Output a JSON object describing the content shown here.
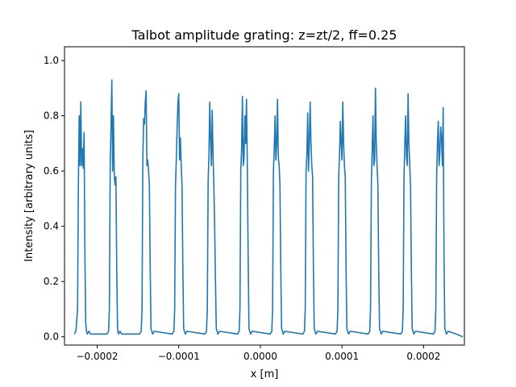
{
  "chart_data": {
    "type": "line",
    "title": "Talbot amplitude grating: z=zt/2, ff=0.25",
    "xlabel": "x [m]",
    "ylabel": "Intensity [arbitrary units]",
    "xlim": [
      -0.00024,
      0.00025
    ],
    "ylim": [
      -0.03,
      1.05
    ],
    "x_ticks": [
      -0.0002,
      -0.0001,
      0.0,
      0.0001,
      0.0002
    ],
    "x_tick_labels": [
      "−0.0002",
      "−0.0001",
      "0.0000",
      "0.0001",
      "0.0002"
    ],
    "y_ticks": [
      0.0,
      0.2,
      0.4,
      0.6,
      0.8,
      1.0
    ],
    "y_tick_labels": [
      "0.0",
      "0.2",
      "0.4",
      "0.6",
      "0.8",
      "1.0"
    ],
    "grid": false,
    "line_color": "#1f77b4",
    "series": [
      {
        "x": [
          -0.000228,
          -0.000226,
          -0.000224,
          -0.000223,
          -0.000222,
          -0.000221,
          -0.00022,
          -0.000219,
          -0.000218,
          -0.000217,
          -0.000216,
          -0.000215,
          -0.000214,
          -0.000213,
          -0.000212,
          -0.00021,
          -0.000208,
          -0.000188,
          -0.000186,
          -0.000185,
          -0.000184,
          -0.000183,
          -0.000182,
          -0.000181,
          -0.00018,
          -0.000179,
          -0.000178,
          -0.000177,
          -0.000176,
          -0.000175,
          -0.000174,
          -0.000172,
          -0.00017,
          -0.000148,
          -0.000146,
          -0.000145,
          -0.000144,
          -0.000143,
          -0.000142,
          -0.000141,
          -0.00014,
          -0.000139,
          -0.000138,
          -0.000137,
          -0.000136,
          -0.000135,
          -0.000134,
          -0.000132,
          -0.00013,
          -0.000108,
          -0.000106,
          -0.000105,
          -0.000104,
          -0.000103,
          -0.000102,
          -0.000101,
          -0.0001,
          -9.9e-05,
          -9.8e-05,
          -9.7e-05,
          -9.6e-05,
          -9.5e-05,
          -9.4e-05,
          -9.2e-05,
          -9e-05,
          -6.8e-05,
          -6.6e-05,
          -6.5e-05,
          -6.4e-05,
          -6.3e-05,
          -6.2e-05,
          -6.1e-05,
          -6e-05,
          -5.9e-05,
          -5.8e-05,
          -5.7e-05,
          -5.6e-05,
          -5.5e-05,
          -5.4e-05,
          -5.2e-05,
          -5e-05,
          -2.8e-05,
          -2.6e-05,
          -2.5e-05,
          -2.4e-05,
          -2.3e-05,
          -2.2e-05,
          -2.1e-05,
          -2e-05,
          -1.9e-05,
          -1.8e-05,
          -1.7e-05,
          -1.6e-05,
          -1.5e-05,
          -1.4e-05,
          -1.2e-05,
          -1e-05,
          1.2e-05,
          1.4e-05,
          1.5e-05,
          1.6e-05,
          1.7e-05,
          1.8e-05,
          1.9e-05,
          2e-05,
          2.1e-05,
          2.2e-05,
          2.3e-05,
          2.4e-05,
          2.5e-05,
          2.6e-05,
          2.8e-05,
          3e-05,
          5.2e-05,
          5.4e-05,
          5.5e-05,
          5.6e-05,
          5.7e-05,
          5.8e-05,
          5.9e-05,
          6e-05,
          6.1e-05,
          6.2e-05,
          6.3e-05,
          6.4e-05,
          6.5e-05,
          6.6e-05,
          6.8e-05,
          7e-05,
          9.2e-05,
          9.4e-05,
          9.5e-05,
          9.6e-05,
          9.7e-05,
          9.8e-05,
          9.9e-05,
          0.0001,
          0.000101,
          0.000102,
          0.000103,
          0.000104,
          0.000105,
          0.000106,
          0.000108,
          0.00011,
          0.000132,
          0.000134,
          0.000135,
          0.000136,
          0.000137,
          0.000138,
          0.000139,
          0.00014,
          0.000141,
          0.000142,
          0.000143,
          0.000144,
          0.000145,
          0.000146,
          0.000148,
          0.00015,
          0.000172,
          0.000174,
          0.000175,
          0.000176,
          0.000177,
          0.000178,
          0.000179,
          0.00018,
          0.000181,
          0.000182,
          0.000183,
          0.000184,
          0.000185,
          0.000186,
          0.000188,
          0.00019,
          0.000212,
          0.000214,
          0.000215,
          0.000216,
          0.000217,
          0.000218,
          0.000219,
          0.00022,
          0.000221,
          0.000222,
          0.000223,
          0.000224,
          0.000225,
          0.000226,
          0.000228,
          0.00023,
          0.00024,
          0.000248
        ],
        "y": [
          0.01,
          0.02,
          0.1,
          0.55,
          0.8,
          0.62,
          0.85,
          0.62,
          0.68,
          0.61,
          0.74,
          0.3,
          0.05,
          0.02,
          0.01,
          0.02,
          0.01,
          0.01,
          0.02,
          0.1,
          0.62,
          0.76,
          0.93,
          0.6,
          0.8,
          0.58,
          0.55,
          0.58,
          0.25,
          0.03,
          0.01,
          0.02,
          0.01,
          0.01,
          0.02,
          0.1,
          0.65,
          0.79,
          0.77,
          0.85,
          0.89,
          0.62,
          0.64,
          0.6,
          0.55,
          0.25,
          0.03,
          0.01,
          0.02,
          0.01,
          0.02,
          0.1,
          0.55,
          0.64,
          0.76,
          0.85,
          0.88,
          0.64,
          0.72,
          0.62,
          0.55,
          0.25,
          0.03,
          0.01,
          0.02,
          0.01,
          0.02,
          0.1,
          0.56,
          0.66,
          0.85,
          0.72,
          0.62,
          0.82,
          0.66,
          0.55,
          0.4,
          0.2,
          0.03,
          0.01,
          0.02,
          0.01,
          0.02,
          0.1,
          0.6,
          0.68,
          0.87,
          0.62,
          0.65,
          0.8,
          0.7,
          0.86,
          0.62,
          0.3,
          0.03,
          0.01,
          0.02,
          0.01,
          0.02,
          0.1,
          0.6,
          0.68,
          0.8,
          0.64,
          0.7,
          0.86,
          0.65,
          0.62,
          0.55,
          0.25,
          0.03,
          0.01,
          0.02,
          0.01,
          0.02,
          0.1,
          0.6,
          0.66,
          0.81,
          0.6,
          0.7,
          0.85,
          0.7,
          0.62,
          0.58,
          0.25,
          0.03,
          0.01,
          0.02,
          0.01,
          0.02,
          0.1,
          0.58,
          0.66,
          0.78,
          0.7,
          0.64,
          0.85,
          0.7,
          0.62,
          0.58,
          0.25,
          0.03,
          0.01,
          0.02,
          0.01,
          0.02,
          0.1,
          0.55,
          0.68,
          0.8,
          0.62,
          0.64,
          0.9,
          0.7,
          0.62,
          0.55,
          0.25,
          0.03,
          0.01,
          0.02,
          0.01,
          0.02,
          0.1,
          0.58,
          0.7,
          0.8,
          0.65,
          0.62,
          0.88,
          0.7,
          0.62,
          0.55,
          0.25,
          0.03,
          0.01,
          0.02,
          0.01,
          0.02,
          0.1,
          0.58,
          0.7,
          0.78,
          0.62,
          0.67,
          0.76,
          0.72,
          0.62,
          0.83,
          0.3,
          0.03,
          0.01,
          0.02,
          0.01,
          0.0
        ]
      }
    ]
  }
}
